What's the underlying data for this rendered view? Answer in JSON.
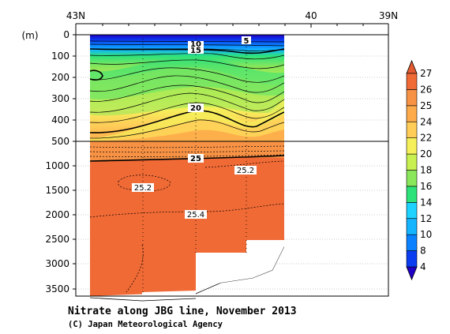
{
  "chart_data": {
    "type": "heatmap",
    "title": "Nitrate along JBG line, November 2013",
    "credit": "(C) Japan Meteorological Agency",
    "ylabel": "(m)",
    "x_ticks": [
      "43N",
      "40",
      "39N"
    ],
    "y_ticks_upper": [
      "0",
      "100",
      "200",
      "300",
      "400",
      "500"
    ],
    "y_ticks_lower": [
      "1000",
      "1500",
      "2000",
      "2500",
      "3000",
      "3500"
    ],
    "colorbar": {
      "levels": [
        4,
        8,
        10,
        12,
        14,
        16,
        18,
        20,
        22,
        24,
        25,
        26,
        27
      ],
      "labels": [
        "4",
        "8",
        "10",
        "12",
        "14",
        "16",
        "18",
        "20",
        "22",
        "24",
        "25",
        "26",
        "27"
      ],
      "colors": [
        "#1e00c8",
        "#0a3cf0",
        "#0a82ff",
        "#14b4ff",
        "#1ed2ff",
        "#2ee27a",
        "#8ae65a",
        "#c8f050",
        "#f5f05a",
        "#ffcd58",
        "#fdab4a",
        "#f79245",
        "#f06a35",
        "#e35a30"
      ]
    },
    "contour_labels": [
      "5",
      "10",
      "15",
      "20",
      "25",
      "25.2",
      "25.2",
      "25.4"
    ],
    "y_upper_range": [
      0,
      500
    ],
    "y_lower_range": [
      500,
      3800
    ]
  }
}
